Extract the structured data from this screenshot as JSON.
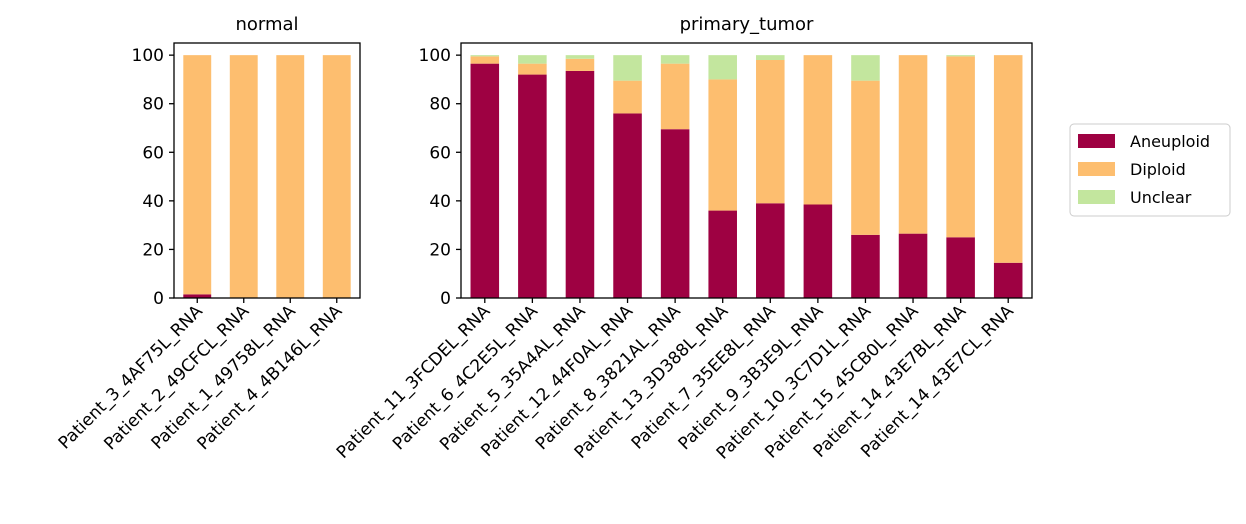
{
  "chart_data": [
    {
      "type": "bar",
      "stacked": true,
      "title": "normal",
      "categories": [
        "Patient_3_4AF75L_RNA",
        "Patient_2_49CFCL_RNA",
        "Patient_1_49758L_RNA",
        "Patient_4_4B146L_RNA"
      ],
      "series": [
        {
          "name": "Aneuploid",
          "values": [
            1.5,
            0,
            0,
            0
          ]
        },
        {
          "name": "Diploid",
          "values": [
            98.5,
            100,
            100,
            100
          ]
        },
        {
          "name": "Unclear",
          "values": [
            0,
            0,
            0,
            0
          ]
        }
      ],
      "ylim": [
        0,
        105
      ],
      "yticks": [
        0,
        20,
        40,
        60,
        80,
        100
      ],
      "grid": false
    },
    {
      "type": "bar",
      "stacked": true,
      "title": "primary_tumor",
      "categories": [
        "Patient_11_3FCDEL_RNA",
        "Patient_6_4C2E5L_RNA",
        "Patient_5_35A4AL_RNA",
        "Patient_12_44F0AL_RNA",
        "Patient_8_3821AL_RNA",
        "Patient_13_3D388L_RNA",
        "Patient_7_35EE8L_RNA",
        "Patient_9_3B3E9L_RNA",
        "Patient_10_3C7D1L_RNA",
        "Patient_15_45CB0L_RNA",
        "Patient_14_43E7BL_RNA",
        "Patient_14_43E7CL_RNA"
      ],
      "series": [
        {
          "name": "Aneuploid",
          "values": [
            96.5,
            92,
            93.5,
            76,
            69.5,
            36,
            39,
            38.5,
            26,
            26.5,
            25,
            14.5
          ]
        },
        {
          "name": "Diploid",
          "values": [
            3,
            4.5,
            5,
            13.5,
            27,
            54,
            59,
            61.5,
            63.5,
            73.5,
            74.5,
            85.5
          ]
        },
        {
          "name": "Unclear",
          "values": [
            0.5,
            3.5,
            1.5,
            10.5,
            3.5,
            10,
            2,
            0,
            10.5,
            0,
            0.5,
            0
          ]
        }
      ],
      "ylim": [
        0,
        105
      ],
      "yticks": [
        0,
        20,
        40,
        60,
        80,
        100
      ],
      "grid": false
    }
  ],
  "legend": {
    "placement": "center-right",
    "entries": [
      {
        "label": "Aneuploid",
        "color": "#9e0142"
      },
      {
        "label": "Diploid",
        "color": "#fdbe6f"
      },
      {
        "label": "Unclear",
        "color": "#c3e69e"
      }
    ]
  }
}
